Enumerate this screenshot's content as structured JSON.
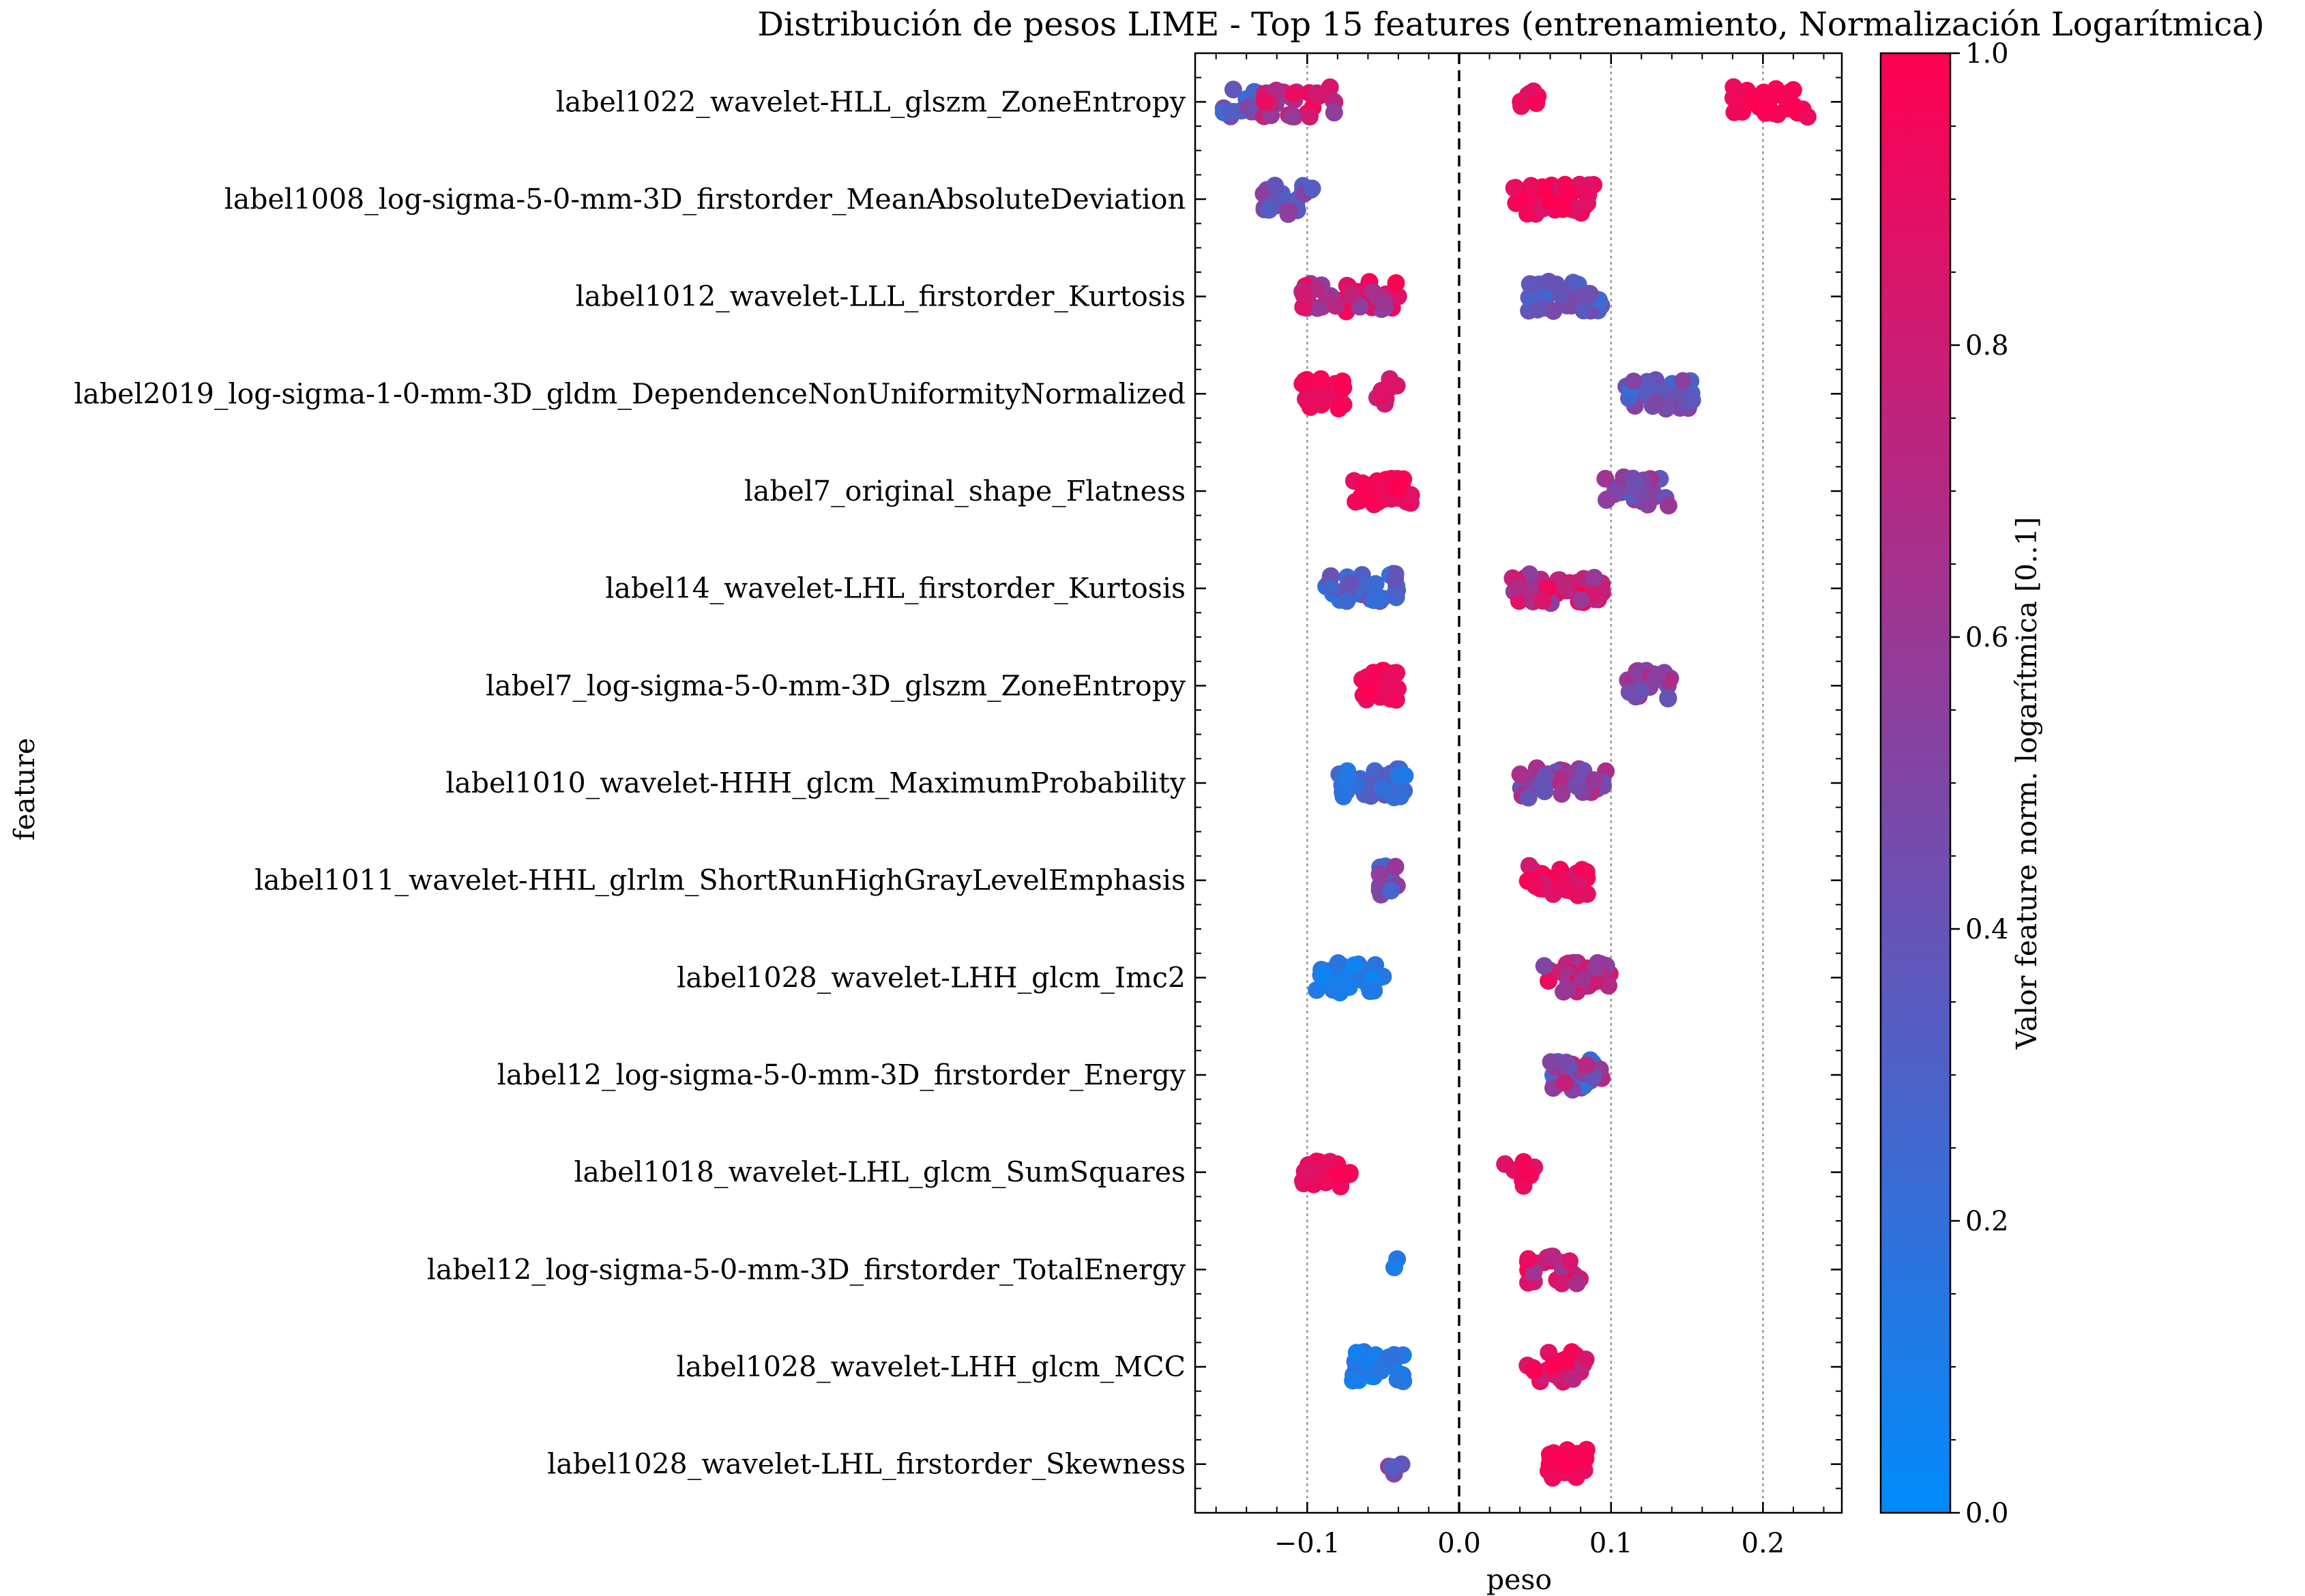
{
  "chart_data": {
    "type": "scatter",
    "title": "Distribución de pesos LIME - Top 15 features (entrenamiento, Normalización Logarítmica)",
    "xlabel": "peso",
    "ylabel": "feature",
    "xlim": [
      -0.17,
      0.25
    ],
    "xticks": [
      -0.1,
      0.0,
      0.1,
      0.2
    ],
    "xtick_labels": [
      "−0.1",
      "0.0",
      "0.1",
      "0.2"
    ],
    "grid": "vertical dotted lines at x ticks",
    "zero_line": "dashed vertical line at x = 0",
    "colorbar": {
      "label": "Valor feature norm. logarítmica [0..1]",
      "range": [
        0.0,
        1.0
      ],
      "ticks": [
        0.0,
        0.2,
        0.4,
        0.6,
        0.8,
        1.0
      ],
      "tick_labels": [
        "0.0",
        "0.2",
        "0.4",
        "0.6",
        "0.8",
        "1.0"
      ],
      "colormap": [
        "#008bfb",
        "#ff0051"
      ]
    },
    "features": [
      {
        "name": "label1022_wavelet-HLL_glszm_ZoneEntropy",
        "clusters": [
          {
            "range": [
              -0.155,
              -0.125
            ],
            "n": 22,
            "v": [
              0.15,
              0.55
            ]
          },
          {
            "range": [
              -0.13,
              -0.08
            ],
            "n": 26,
            "v": [
              0.55,
              0.95
            ]
          },
          {
            "range": [
              0.04,
              0.055
            ],
            "n": 8,
            "v": [
              0.85,
              1.0
            ]
          },
          {
            "range": [
              0.18,
              0.23
            ],
            "n": 30,
            "v": [
              0.92,
              1.0
            ]
          }
        ]
      },
      {
        "name": "label1008_log-sigma-5-0-mm-3D_firstorder_MeanAbsoluteDeviation",
        "clusters": [
          {
            "range": [
              -0.13,
              -0.095
            ],
            "n": 20,
            "v": [
              0.3,
              0.6
            ]
          },
          {
            "range": [
              0.035,
              0.09
            ],
            "n": 45,
            "v": [
              0.85,
              1.0
            ]
          }
        ]
      },
      {
        "name": "label1012_wavelet-LLL_firstorder_Kurtosis",
        "clusters": [
          {
            "range": [
              -0.105,
              -0.04
            ],
            "n": 45,
            "v": [
              0.5,
              1.0
            ]
          },
          {
            "range": [
              0.045,
              0.095
            ],
            "n": 40,
            "v": [
              0.2,
              0.5
            ]
          }
        ]
      },
      {
        "name": "label2019_log-sigma-1-0-mm-3D_gldm_DependenceNonUniformityNormalized",
        "clusters": [
          {
            "range": [
              -0.105,
              -0.075
            ],
            "n": 28,
            "v": [
              0.85,
              1.0
            ]
          },
          {
            "range": [
              -0.06,
              -0.04
            ],
            "n": 10,
            "v": [
              0.75,
              1.0
            ]
          },
          {
            "range": [
              0.11,
              0.155
            ],
            "n": 32,
            "v": [
              0.2,
              0.55
            ]
          }
        ]
      },
      {
        "name": "label7_original_shape_Flatness",
        "clusters": [
          {
            "range": [
              -0.07,
              -0.03
            ],
            "n": 40,
            "v": [
              0.85,
              1.0
            ]
          },
          {
            "range": [
              0.095,
              0.14
            ],
            "n": 28,
            "v": [
              0.3,
              0.7
            ]
          }
        ]
      },
      {
        "name": "label14_wavelet-LHL_firstorder_Kurtosis",
        "clusters": [
          {
            "range": [
              -0.09,
              -0.04
            ],
            "n": 40,
            "v": [
              0.15,
              0.45
            ]
          },
          {
            "range": [
              0.035,
              0.095
            ],
            "n": 45,
            "v": [
              0.55,
              1.0
            ]
          }
        ]
      },
      {
        "name": "label7_log-sigma-5-0-mm-3D_glszm_ZoneEntropy",
        "clusters": [
          {
            "range": [
              -0.065,
              -0.04
            ],
            "n": 30,
            "v": [
              0.9,
              1.0
            ]
          },
          {
            "range": [
              0.11,
              0.14
            ],
            "n": 25,
            "v": [
              0.35,
              0.75
            ]
          }
        ]
      },
      {
        "name": "label1010_wavelet-HHH_glcm_MaximumProbability",
        "clusters": [
          {
            "range": [
              -0.08,
              -0.035
            ],
            "n": 38,
            "v": [
              0.1,
              0.35
            ]
          },
          {
            "range": [
              0.035,
              0.1
            ],
            "n": 40,
            "v": [
              0.35,
              0.7
            ]
          }
        ]
      },
      {
        "name": "label1011_wavelet-HHL_glrlm_ShortRunHighGrayLevelEmphasis",
        "clusters": [
          {
            "range": [
              -0.055,
              -0.038
            ],
            "n": 12,
            "v": [
              0.2,
              0.7
            ]
          },
          {
            "range": [
              0.045,
              0.085
            ],
            "n": 32,
            "v": [
              0.8,
              1.0
            ]
          }
        ]
      },
      {
        "name": "label1028_wavelet-LHH_glcm_Imc2",
        "clusters": [
          {
            "range": [
              -0.095,
              -0.05
            ],
            "n": 34,
            "v": [
              0.05,
              0.18
            ]
          },
          {
            "range": [
              0.055,
              0.1
            ],
            "n": 40,
            "v": [
              0.5,
              0.95
            ]
          }
        ]
      },
      {
        "name": "label12_log-sigma-5-0-mm-3D_firstorder_Energy",
        "clusters": [
          {
            "range": [
              0.06,
              0.095
            ],
            "n": 35,
            "v": [
              0.15,
              0.8
            ]
          }
        ]
      },
      {
        "name": "label1018_wavelet-LHL_glcm_SumSquares",
        "clusters": [
          {
            "range": [
              -0.105,
              -0.07
            ],
            "n": 32,
            "v": [
              0.85,
              1.0
            ]
          },
          {
            "range": [
              0.03,
              0.052
            ],
            "n": 10,
            "v": [
              0.85,
              1.0
            ]
          }
        ]
      },
      {
        "name": "label12_log-sigma-5-0-mm-3D_firstorder_TotalEnergy",
        "clusters": [
          {
            "range": [
              -0.044,
              -0.035
            ],
            "n": 2,
            "v": [
              0.1,
              0.2
            ]
          },
          {
            "range": [
              0.045,
              0.08
            ],
            "n": 28,
            "v": [
              0.6,
              1.0
            ]
          }
        ]
      },
      {
        "name": "label1028_wavelet-LHH_glcm_MCC",
        "clusters": [
          {
            "range": [
              -0.07,
              -0.035
            ],
            "n": 32,
            "v": [
              0.05,
              0.2
            ]
          },
          {
            "range": [
              0.045,
              0.085
            ],
            "n": 30,
            "v": [
              0.7,
              1.0
            ]
          }
        ]
      },
      {
        "name": "label1028_wavelet-LHL_firstorder_Skewness",
        "clusters": [
          {
            "range": [
              -0.048,
              -0.035
            ],
            "n": 4,
            "v": [
              0.25,
              0.6
            ]
          },
          {
            "range": [
              0.055,
              0.085
            ],
            "n": 32,
            "v": [
              0.9,
              1.0
            ]
          }
        ]
      }
    ]
  }
}
